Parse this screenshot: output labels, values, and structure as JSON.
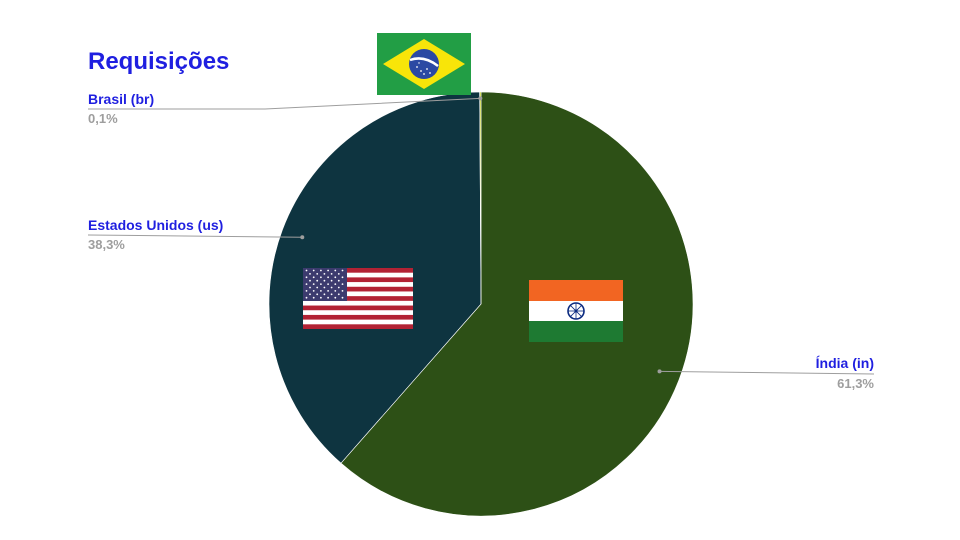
{
  "chart_data": {
    "type": "pie",
    "title": "Requisições",
    "categories": [
      "Índia (in)",
      "Estados Unidos (us)",
      "Brasil (br)"
    ],
    "values": [
      61.3,
      38.3,
      0.1
    ],
    "value_labels": [
      "61,3%",
      "38,3%",
      "0,1%"
    ],
    "colors": [
      "#2d5016",
      "#0e3440",
      "#c8d21e"
    ],
    "start_angle_deg": 0,
    "direction": "clockwise",
    "legend": "none",
    "flags": [
      "india-flag",
      "usa-flag",
      "brazil-flag"
    ]
  },
  "style": {
    "title_color": "#1f1fe0",
    "label_color": "#1f1fe0",
    "value_color": "#9e9e9e",
    "leader_color": "#9e9e9e"
  }
}
